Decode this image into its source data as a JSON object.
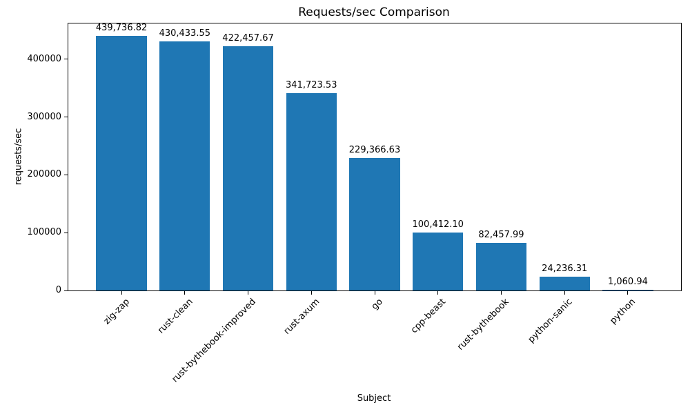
{
  "chart_data": {
    "type": "bar",
    "title": "Requests/sec Comparison",
    "xlabel": "Subject",
    "ylabel": "requests/sec",
    "categories": [
      "zig-zap",
      "rust-clean",
      "rust-bythebook-improved",
      "rust-axum",
      "go",
      "cpp-beast",
      "rust-bythebook",
      "python-sanic",
      "python"
    ],
    "values": [
      439736.82,
      430433.55,
      422457.67,
      341723.53,
      229366.63,
      100412.1,
      82457.99,
      24236.31,
      1060.94
    ],
    "value_labels": [
      "439,736.82",
      "430,433.55",
      "422,457.67",
      "341,723.53",
      "229,366.63",
      "100,412.10",
      "82,457.99",
      "24,236.31",
      "1,060.94"
    ],
    "yticks": [
      0,
      100000,
      200000,
      300000,
      400000
    ],
    "ytick_labels": [
      "0",
      "100000",
      "200000",
      "300000",
      "400000"
    ],
    "ylim": [
      0,
      461723.66
    ],
    "bar_color": "#1f77b4",
    "grid": false,
    "legend": null,
    "bar_width_fraction": 0.8,
    "x_tick_rotation_deg": 45
  }
}
